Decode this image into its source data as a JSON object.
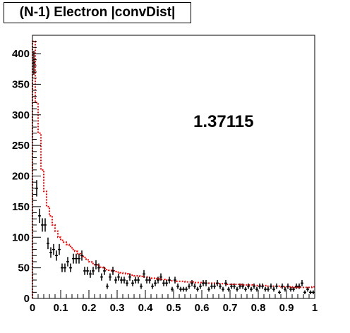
{
  "chart_data": {
    "type": "histogram",
    "title": "(N-1) Electron |convDist|",
    "annotation": "1.37115",
    "xlim": [
      0,
      1
    ],
    "ylim": [
      0,
      430
    ],
    "x_ticks": [
      0,
      0.1,
      0.2,
      0.3,
      0.4,
      0.5,
      0.6,
      0.7,
      0.8,
      0.9,
      1
    ],
    "x_tick_labels": [
      "0",
      "0.1",
      "0.2",
      "0.3",
      "0.4",
      "0.5",
      "0.6",
      "0.7",
      "0.8",
      "0.9",
      "1"
    ],
    "y_ticks": [
      0,
      50,
      100,
      150,
      200,
      250,
      300,
      350,
      400
    ],
    "y_tick_labels": [
      "0",
      "50",
      "100",
      "150",
      "200",
      "250",
      "300",
      "350",
      "400"
    ],
    "grid": false,
    "bin_width": 0.01,
    "series": [
      {
        "style": "step-dotted",
        "color": "#ff0000",
        "values": [
          420,
          320,
          270,
          210,
          175,
          150,
          135,
          120,
          110,
          100,
          95,
          92,
          88,
          85,
          80,
          77,
          73,
          70,
          67,
          63,
          60,
          57,
          55,
          53,
          51,
          49,
          47,
          46,
          45,
          44,
          43,
          42,
          41,
          40,
          39,
          38,
          37,
          37,
          36,
          35,
          35,
          34,
          33,
          33,
          32,
          31,
          31,
          30,
          30,
          29,
          29,
          28,
          28,
          28,
          27,
          27,
          27,
          26,
          26,
          26,
          26,
          25,
          25,
          25,
          25,
          24,
          24,
          24,
          24,
          23,
          23,
          23,
          23,
          23,
          22,
          22,
          22,
          22,
          21,
          21,
          21,
          21,
          21,
          20,
          20,
          20,
          20,
          20,
          19,
          19,
          19,
          19,
          18,
          18,
          18,
          18,
          18,
          18,
          18,
          19
        ]
      },
      {
        "style": "points-errorbars",
        "color": "#000000",
        "values": [
          385,
          180,
          135,
          120,
          120,
          90,
          75,
          80,
          70,
          80,
          50,
          50,
          60,
          50,
          65,
          65,
          65,
          70,
          45,
          45,
          40,
          45,
          55,
          50,
          35,
          45,
          20,
          35,
          45,
          30,
          35,
          30,
          30,
          25,
          35,
          25,
          30,
          30,
          20,
          40,
          30,
          30,
          20,
          25,
          30,
          35,
          25,
          25,
          30,
          15,
          30,
          20,
          15,
          15,
          15,
          20,
          25,
          20,
          15,
          20,
          25,
          25,
          15,
          20,
          20,
          25,
          20,
          15,
          25,
          15,
          20,
          20,
          15,
          20,
          20,
          15,
          20,
          15,
          20,
          15,
          20,
          20,
          15,
          15,
          20,
          15,
          20,
          10,
          20,
          15,
          20,
          15,
          15,
          20,
          20,
          25,
          10,
          15,
          10,
          10
        ]
      }
    ]
  }
}
